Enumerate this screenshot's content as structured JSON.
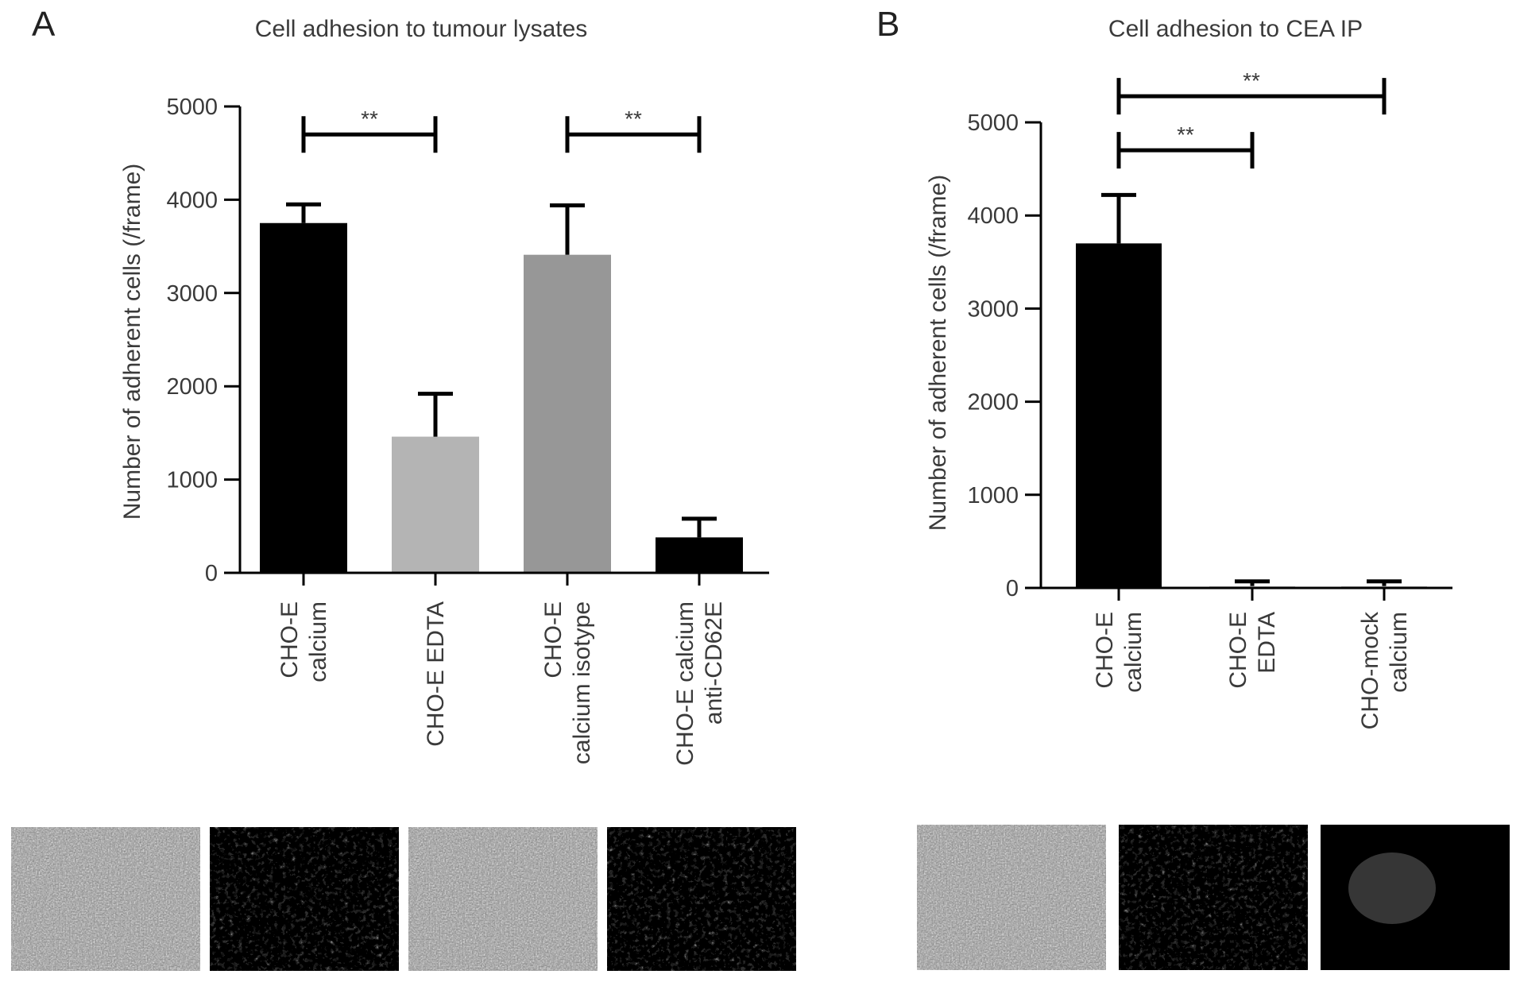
{
  "chart_data": [
    {
      "type": "bar",
      "panel": "A",
      "title": "Cell adhesion to tumour lysates",
      "ylabel": "Number of adherent cells (/frame)",
      "ylim": [
        0,
        5000
      ],
      "yticks": [
        0,
        1000,
        2000,
        3000,
        4000,
        5000
      ],
      "categories": [
        [
          "CHO-E",
          "calcium"
        ],
        [
          "CHO-E EDTA"
        ],
        [
          "CHO-E",
          "calcium isotype"
        ],
        [
          "CHO-E calcium",
          "anti-CD62E"
        ]
      ],
      "values": [
        3750,
        1460,
        3410,
        380
      ],
      "errors": [
        200,
        460,
        530,
        200
      ],
      "colors": [
        "#000000",
        "#b4b4b4",
        "#979797",
        "#000000"
      ],
      "significance": [
        {
          "from": 0,
          "to": 1,
          "label": "**",
          "y": 4700
        },
        {
          "from": 2,
          "to": 3,
          "label": "**",
          "y": 4700
        }
      ],
      "micrographs": [
        "calcium-grey",
        "edta-dark",
        "isotype-grey",
        "anti-cd62e-dark"
      ]
    },
    {
      "type": "bar",
      "panel": "B",
      "title": "Cell adhesion to CEA IP",
      "ylabel": "Number of adherent cells (/frame)",
      "ylim": [
        0,
        5000
      ],
      "yticks": [
        0,
        1000,
        2000,
        3000,
        4000,
        5000
      ],
      "categories": [
        [
          "CHO-E",
          "calcium"
        ],
        [
          "CHO-E",
          "EDTA"
        ],
        [
          "CHO-mock",
          "calcium"
        ]
      ],
      "values": [
        3700,
        20,
        20
      ],
      "errors": [
        520,
        50,
        50
      ],
      "colors": [
        "#000000",
        "#d0d0d0",
        "#d0d0d0"
      ],
      "significance": [
        {
          "from": 0,
          "to": 1,
          "label": "**",
          "y": 4700
        },
        {
          "from": 0,
          "to": 2,
          "label": "**",
          "y": 5280
        }
      ],
      "micrographs": [
        "calcium-grey",
        "edta-dark",
        "mock-dark"
      ]
    }
  ]
}
